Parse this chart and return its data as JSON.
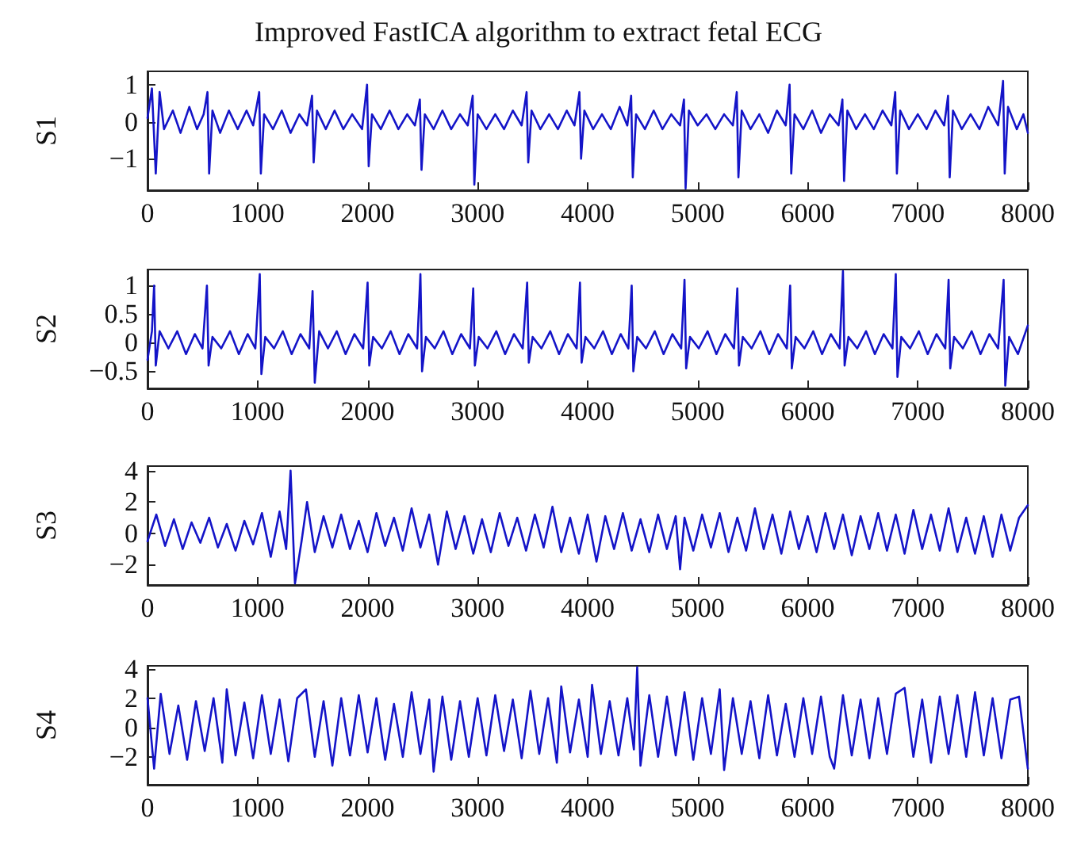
{
  "chart_data": [
    {
      "type": "line",
      "title": "Improved FastICA algorithm to extract fetal ECG",
      "ylabel": "S1",
      "xlim": [
        0,
        8000
      ],
      "xticks": [
        0,
        1000,
        2000,
        3000,
        4000,
        5000,
        6000,
        7000,
        8000
      ],
      "ylim": [
        -1.85,
        1.36
      ],
      "yticks": [
        {
          "value": -1,
          "label": "−1"
        },
        0,
        1
      ],
      "grid": false,
      "x": [
        0,
        40,
        75,
        110,
        150,
        230,
        300,
        380,
        450,
        510,
        545,
        560,
        590,
        660,
        740,
        820,
        900,
        960,
        1015,
        1030,
        1060,
        1140,
        1220,
        1300,
        1380,
        1450,
        1495,
        1510,
        1540,
        1620,
        1700,
        1780,
        1860,
        1950,
        1995,
        2010,
        2040,
        2120,
        2200,
        2280,
        2360,
        2430,
        2475,
        2490,
        2520,
        2600,
        2680,
        2760,
        2840,
        2910,
        2955,
        2970,
        3000,
        3080,
        3160,
        3240,
        3320,
        3400,
        3445,
        3460,
        3490,
        3570,
        3650,
        3730,
        3810,
        3880,
        3925,
        3940,
        3970,
        4050,
        4130,
        4210,
        4290,
        4360,
        4395,
        4410,
        4440,
        4520,
        4600,
        4680,
        4760,
        4840,
        4875,
        4890,
        4920,
        5000,
        5080,
        5160,
        5240,
        5320,
        5355,
        5370,
        5400,
        5480,
        5560,
        5640,
        5720,
        5800,
        5835,
        5850,
        5880,
        5960,
        6040,
        6120,
        6200,
        6280,
        6315,
        6330,
        6360,
        6440,
        6520,
        6600,
        6680,
        6760,
        6795,
        6810,
        6840,
        6920,
        7000,
        7080,
        7160,
        7240,
        7275,
        7290,
        7320,
        7400,
        7480,
        7560,
        7640,
        7730,
        7775,
        7790,
        7820,
        7900,
        7960,
        8000
      ],
      "series": [
        {
          "color": "#1414c8",
          "values": [
            0.1,
            0.9,
            -1.4,
            0.8,
            -0.2,
            0.3,
            -0.3,
            0.4,
            -0.2,
            0.2,
            0.8,
            -1.4,
            0.3,
            -0.3,
            0.3,
            -0.2,
            0.3,
            -0.1,
            0.8,
            -1.4,
            0.2,
            -0.2,
            0.3,
            -0.3,
            0.2,
            -0.1,
            0.7,
            -1.1,
            0.3,
            -0.2,
            0.3,
            -0.2,
            0.2,
            -0.2,
            1.0,
            -1.2,
            0.2,
            -0.2,
            0.3,
            -0.2,
            0.2,
            -0.1,
            0.6,
            -1.3,
            0.2,
            -0.2,
            0.3,
            -0.2,
            0.2,
            -0.1,
            0.7,
            -1.7,
            0.2,
            -0.2,
            0.2,
            -0.2,
            0.3,
            -0.1,
            0.8,
            -1.1,
            0.3,
            -0.2,
            0.2,
            -0.2,
            0.3,
            -0.1,
            0.8,
            -1.0,
            0.3,
            -0.2,
            0.2,
            -0.2,
            0.4,
            -0.1,
            0.7,
            -1.5,
            0.2,
            -0.2,
            0.3,
            -0.2,
            0.2,
            -0.1,
            0.6,
            -1.8,
            0.3,
            -0.1,
            0.2,
            -0.2,
            0.2,
            -0.1,
            0.8,
            -1.5,
            0.3,
            -0.2,
            0.2,
            -0.3,
            0.3,
            -0.1,
            1.0,
            -1.4,
            0.2,
            -0.2,
            0.3,
            -0.3,
            0.2,
            -0.1,
            0.6,
            -1.6,
            0.3,
            -0.2,
            0.2,
            -0.2,
            0.3,
            -0.1,
            0.8,
            -1.4,
            0.3,
            -0.2,
            0.2,
            -0.2,
            0.3,
            -0.1,
            0.7,
            -1.5,
            0.3,
            -0.2,
            0.2,
            -0.2,
            0.4,
            -0.1,
            1.1,
            -1.4,
            0.4,
            -0.2,
            0.2,
            -0.3
          ]
        }
      ]
    },
    {
      "type": "line",
      "ylabel": "S2",
      "xlim": [
        0,
        8000
      ],
      "xticks": [
        0,
        1000,
        2000,
        3000,
        4000,
        5000,
        6000,
        7000,
        8000
      ],
      "ylim": [
        -0.8,
        1.28
      ],
      "yticks": [
        {
          "value": -0.5,
          "label": "−0.5"
        },
        0,
        0.5,
        1
      ],
      "grid": false,
      "x": [
        0,
        40,
        60,
        75,
        110,
        190,
        270,
        350,
        430,
        500,
        540,
        555,
        590,
        670,
        750,
        830,
        910,
        980,
        1020,
        1035,
        1070,
        1150,
        1230,
        1310,
        1390,
        1470,
        1500,
        1520,
        1560,
        1640,
        1720,
        1800,
        1880,
        1960,
        2000,
        2015,
        2050,
        2130,
        2210,
        2290,
        2370,
        2450,
        2480,
        2495,
        2530,
        2610,
        2690,
        2770,
        2850,
        2930,
        2960,
        2975,
        3010,
        3090,
        3170,
        3250,
        3330,
        3410,
        3450,
        3465,
        3500,
        3580,
        3660,
        3740,
        3820,
        3900,
        3930,
        3945,
        3980,
        4060,
        4140,
        4220,
        4300,
        4370,
        4400,
        4415,
        4450,
        4530,
        4610,
        4690,
        4770,
        4850,
        4880,
        4895,
        4930,
        5010,
        5090,
        5170,
        5250,
        5330,
        5360,
        5375,
        5410,
        5490,
        5570,
        5650,
        5730,
        5810,
        5840,
        5855,
        5890,
        5970,
        6050,
        6130,
        6210,
        6290,
        6320,
        6335,
        6370,
        6450,
        6530,
        6610,
        6690,
        6770,
        6800,
        6815,
        6850,
        6930,
        7010,
        7090,
        7170,
        7250,
        7280,
        7295,
        7330,
        7410,
        7490,
        7570,
        7650,
        7730,
        7780,
        7795,
        7830,
        7910,
        8000
      ],
      "series": [
        {
          "color": "#1414c8",
          "values": [
            -0.3,
            0.2,
            1.0,
            -0.4,
            0.2,
            -0.1,
            0.2,
            -0.2,
            0.15,
            -0.1,
            1.0,
            -0.4,
            0.1,
            -0.1,
            0.2,
            -0.2,
            0.15,
            -0.1,
            1.2,
            -0.55,
            0.1,
            -0.1,
            0.2,
            -0.2,
            0.15,
            -0.1,
            0.9,
            -0.7,
            0.2,
            -0.1,
            0.2,
            -0.2,
            0.15,
            -0.1,
            1.05,
            -0.4,
            0.1,
            -0.1,
            0.2,
            -0.2,
            0.15,
            -0.1,
            1.2,
            -0.5,
            0.1,
            -0.1,
            0.2,
            -0.2,
            0.15,
            -0.1,
            0.95,
            -0.4,
            0.1,
            -0.1,
            0.2,
            -0.2,
            0.15,
            -0.1,
            1.05,
            -0.35,
            0.1,
            -0.1,
            0.2,
            -0.2,
            0.15,
            -0.1,
            1.05,
            -0.35,
            0.1,
            -0.1,
            0.2,
            -0.2,
            0.15,
            -0.1,
            1.0,
            -0.5,
            0.1,
            -0.1,
            0.2,
            -0.2,
            0.15,
            -0.1,
            1.1,
            -0.45,
            0.1,
            -0.1,
            0.2,
            -0.2,
            0.15,
            -0.1,
            0.95,
            -0.4,
            0.1,
            -0.1,
            0.2,
            -0.2,
            0.15,
            -0.1,
            1.0,
            -0.45,
            0.1,
            -0.1,
            0.2,
            -0.2,
            0.15,
            -0.1,
            1.25,
            -0.4,
            0.1,
            -0.1,
            0.2,
            -0.2,
            0.15,
            -0.1,
            1.2,
            -0.6,
            0.1,
            -0.1,
            0.2,
            -0.2,
            0.15,
            -0.1,
            1.1,
            -0.45,
            0.1,
            -0.1,
            0.2,
            -0.2,
            0.15,
            -0.1,
            1.1,
            -0.75,
            0.1,
            -0.2,
            0.3
          ]
        }
      ]
    },
    {
      "type": "line",
      "ylabel": "S3",
      "xlim": [
        0,
        8000
      ],
      "xticks": [
        0,
        1000,
        2000,
        3000,
        4000,
        5000,
        6000,
        7000,
        8000
      ],
      "ylim": [
        -3.3,
        4.3
      ],
      "yticks": [
        {
          "value": -2,
          "label": "−2"
        },
        0,
        2,
        4
      ],
      "grid": false,
      "x": [
        0,
        80,
        160,
        240,
        320,
        400,
        480,
        560,
        640,
        720,
        800,
        880,
        960,
        1040,
        1120,
        1200,
        1260,
        1300,
        1340,
        1400,
        1450,
        1520,
        1600,
        1680,
        1760,
        1840,
        1920,
        2000,
        2080,
        2160,
        2240,
        2320,
        2400,
        2480,
        2560,
        2640,
        2720,
        2800,
        2880,
        2960,
        3040,
        3120,
        3200,
        3280,
        3360,
        3440,
        3520,
        3600,
        3680,
        3760,
        3840,
        3920,
        4000,
        4080,
        4160,
        4240,
        4320,
        4400,
        4480,
        4560,
        4640,
        4720,
        4800,
        4840,
        4880,
        4960,
        5040,
        5120,
        5200,
        5280,
        5360,
        5440,
        5520,
        5600,
        5680,
        5760,
        5840,
        5920,
        6000,
        6080,
        6160,
        6240,
        6320,
        6400,
        6480,
        6560,
        6640,
        6720,
        6800,
        6880,
        6960,
        7040,
        7120,
        7200,
        7280,
        7360,
        7440,
        7520,
        7600,
        7680,
        7760,
        7840,
        7920,
        8000
      ],
      "series": [
        {
          "color": "#1414c8",
          "values": [
            -0.5,
            1.2,
            -0.8,
            0.9,
            -1.0,
            0.7,
            -0.6,
            1.0,
            -0.9,
            0.6,
            -1.1,
            0.8,
            -0.7,
            1.3,
            -1.5,
            1.4,
            -1.0,
            4.0,
            -3.2,
            -0.5,
            2.0,
            -1.2,
            1.1,
            -0.9,
            1.2,
            -1.0,
            0.8,
            -1.2,
            1.3,
            -0.8,
            1.0,
            -1.1,
            1.6,
            -0.9,
            1.2,
            -2.0,
            1.4,
            -1.0,
            1.1,
            -1.3,
            0.9,
            -1.2,
            1.3,
            -0.8,
            1.0,
            -1.1,
            1.2,
            -0.9,
            1.7,
            -1.2,
            1.0,
            -1.3,
            1.2,
            -1.8,
            1.1,
            -1.0,
            1.3,
            -1.1,
            0.9,
            -1.2,
            1.2,
            -1.0,
            1.1,
            -2.3,
            1.0,
            -1.1,
            1.2,
            -0.9,
            1.3,
            -1.2,
            1.0,
            -1.1,
            1.6,
            -1.0,
            1.2,
            -1.3,
            1.4,
            -1.0,
            1.1,
            -1.2,
            1.3,
            -1.0,
            1.2,
            -1.4,
            1.1,
            -1.0,
            1.3,
            -1.1,
            1.2,
            -1.3,
            1.5,
            -1.0,
            1.2,
            -1.1,
            1.6,
            -1.2,
            1.0,
            -1.3,
            1.1,
            -1.5,
            1.2,
            -1.1,
            1.0,
            1.8
          ]
        }
      ]
    },
    {
      "type": "line",
      "ylabel": "S4",
      "xlim": [
        0,
        8000
      ],
      "xticks": [
        0,
        1000,
        2000,
        3000,
        4000,
        5000,
        6000,
        7000,
        8000
      ],
      "ylim": [
        -3.9,
        4.2
      ],
      "yticks": [
        {
          "value": -2,
          "label": "−2"
        },
        0,
        2,
        4
      ],
      "grid": false,
      "x": [
        0,
        60,
        120,
        200,
        280,
        360,
        440,
        520,
        600,
        680,
        720,
        800,
        880,
        960,
        1040,
        1120,
        1200,
        1280,
        1360,
        1440,
        1520,
        1600,
        1680,
        1760,
        1840,
        1920,
        2000,
        2080,
        2160,
        2240,
        2320,
        2400,
        2480,
        2560,
        2600,
        2680,
        2760,
        2840,
        2920,
        3000,
        3080,
        3160,
        3240,
        3320,
        3400,
        3480,
        3560,
        3640,
        3720,
        3760,
        3840,
        3920,
        4000,
        4040,
        4120,
        4200,
        4280,
        4360,
        4420,
        4450,
        4480,
        4560,
        4640,
        4720,
        4800,
        4880,
        4960,
        5040,
        5120,
        5200,
        5240,
        5320,
        5400,
        5480,
        5560,
        5640,
        5720,
        5800,
        5880,
        5960,
        6040,
        6120,
        6200,
        6240,
        6320,
        6400,
        6480,
        6560,
        6640,
        6720,
        6800,
        6880,
        6960,
        7040,
        7120,
        7200,
        7280,
        7360,
        7440,
        7520,
        7600,
        7680,
        7760,
        7840,
        7920,
        8000
      ],
      "series": [
        {
          "color": "#1414c8",
          "values": [
            2.0,
            -2.8,
            2.3,
            -1.8,
            1.5,
            -2.2,
            1.8,
            -1.6,
            2.0,
            -2.4,
            2.6,
            -1.9,
            1.7,
            -2.1,
            2.2,
            -1.8,
            1.9,
            -2.3,
            2.0,
            2.6,
            -2.0,
            1.8,
            -2.6,
            2.0,
            -1.9,
            2.2,
            -1.7,
            2.0,
            -2.2,
            1.6,
            -2.0,
            2.4,
            -1.8,
            1.9,
            -3.0,
            2.1,
            -2.2,
            1.8,
            -2.0,
            2.0,
            -1.9,
            2.2,
            -1.6,
            1.9,
            -2.1,
            2.5,
            -1.8,
            2.0,
            -2.4,
            2.8,
            -1.7,
            1.9,
            -2.0,
            2.9,
            -1.8,
            1.8,
            -1.9,
            2.0,
            -1.5,
            4.1,
            -2.6,
            2.2,
            -2.0,
            2.1,
            -1.9,
            2.4,
            -2.2,
            2.0,
            -1.8,
            2.6,
            -2.9,
            2.0,
            -1.8,
            1.8,
            -2.1,
            2.2,
            -1.9,
            1.6,
            -2.0,
            2.0,
            -1.8,
            2.1,
            -2.0,
            -2.8,
            2.2,
            -1.9,
            1.9,
            -2.1,
            2.0,
            -1.8,
            2.3,
            2.7,
            -2.0,
            1.9,
            -2.4,
            2.1,
            -1.8,
            2.2,
            -2.0,
            2.4,
            -1.9,
            2.0,
            -2.1,
            1.9,
            2.1,
            -2.8
          ]
        }
      ]
    }
  ]
}
